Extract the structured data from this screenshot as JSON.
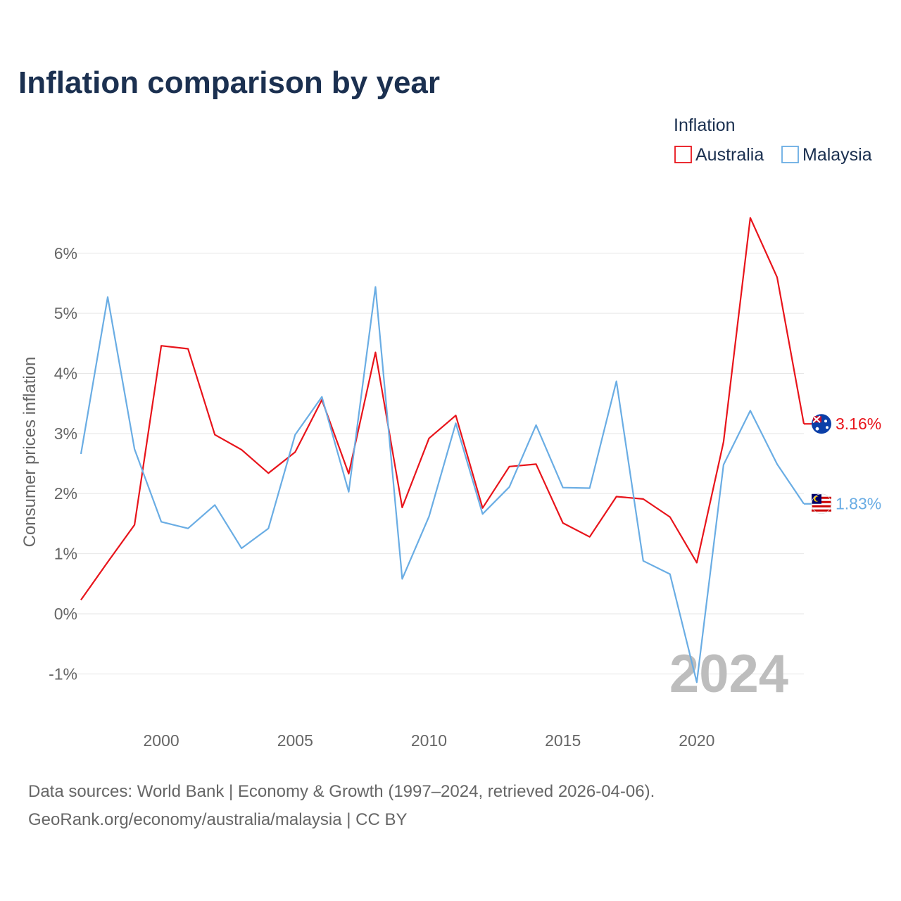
{
  "chart_data": {
    "type": "line",
    "title": "Inflation comparison by year",
    "ylabel": "Consumer prices inflation",
    "xlabel": "",
    "xlim": [
      1997,
      2024
    ],
    "ylim": [
      -1.5,
      6.7
    ],
    "x_ticks": [
      2000,
      2005,
      2010,
      2015,
      2020
    ],
    "x_tick_labels": [
      "2000",
      "2005",
      "2010",
      "2015",
      "2020"
    ],
    "y_ticks": [
      -1,
      0,
      1,
      2,
      3,
      4,
      5,
      6
    ],
    "y_tick_labels": [
      "-1%",
      "0%",
      "1%",
      "2%",
      "3%",
      "4%",
      "5%",
      "6%"
    ],
    "legend_title": "Inflation",
    "legend_position": "top-right",
    "current_year": "2024",
    "x": [
      1997,
      1998,
      1999,
      2000,
      2001,
      2002,
      2003,
      2004,
      2005,
      2006,
      2007,
      2008,
      2009,
      2010,
      2011,
      2012,
      2013,
      2014,
      2015,
      2016,
      2017,
      2018,
      2019,
      2020,
      2021,
      2022,
      2023,
      2024
    ],
    "series": [
      {
        "name": "Australia",
        "color": "#e8141b",
        "end_label": "3.16%",
        "flag_icon": "australia-flag-icon",
        "values": [
          0.23,
          0.86,
          1.48,
          4.46,
          4.41,
          2.98,
          2.73,
          2.34,
          2.69,
          3.56,
          2.33,
          4.35,
          1.77,
          2.92,
          3.3,
          1.76,
          2.45,
          2.49,
          1.51,
          1.28,
          1.95,
          1.91,
          1.61,
          0.85,
          2.86,
          6.59,
          5.6,
          3.16
        ]
      },
      {
        "name": "Malaysia",
        "color": "#6aade4",
        "end_label": "1.83%",
        "flag_icon": "malaysia-flag-icon",
        "values": [
          2.66,
          5.27,
          2.74,
          1.53,
          1.42,
          1.81,
          1.09,
          1.42,
          2.98,
          3.61,
          2.03,
          5.44,
          0.58,
          1.62,
          3.17,
          1.66,
          2.11,
          3.14,
          2.1,
          2.09,
          3.87,
          0.88,
          0.66,
          -1.14,
          2.48,
          3.38,
          2.49,
          1.83
        ]
      }
    ]
  },
  "source": {
    "line1": "Data sources: World Bank | Economy & Growth (1997–2024, retrieved 2026-04-06).",
    "line2": "GeoRank.org/economy/australia/malaysia | CC BY"
  }
}
